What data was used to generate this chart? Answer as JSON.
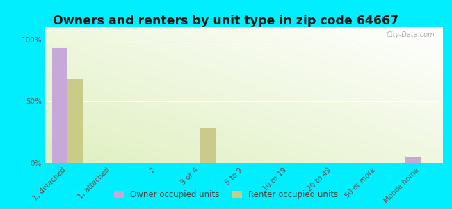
{
  "title": "Owners and renters by unit type in zip code 64667",
  "categories": [
    "1, detached",
    "1, attached",
    "2",
    "3 or 4",
    "5 to 9",
    "10 to 19",
    "20 to 49",
    "50 or more",
    "Mobile home"
  ],
  "owner_values": [
    93,
    0,
    0,
    0,
    0,
    0,
    0,
    0,
    5
  ],
  "renter_values": [
    68,
    0,
    0,
    28,
    0,
    0,
    0,
    0,
    0
  ],
  "owner_color": "#c8a8d8",
  "renter_color": "#c8cc88",
  "outer_bg": "#00eeff",
  "yticks": [
    0,
    50,
    100
  ],
  "ylim": [
    0,
    110
  ],
  "title_fontsize": 12.5,
  "tick_fontsize": 7.5,
  "legend_fontsize": 8.5,
  "watermark": "City-Data.com",
  "bg_left_bottom": "#c8dc98",
  "bg_right_top": "#f0fce8"
}
